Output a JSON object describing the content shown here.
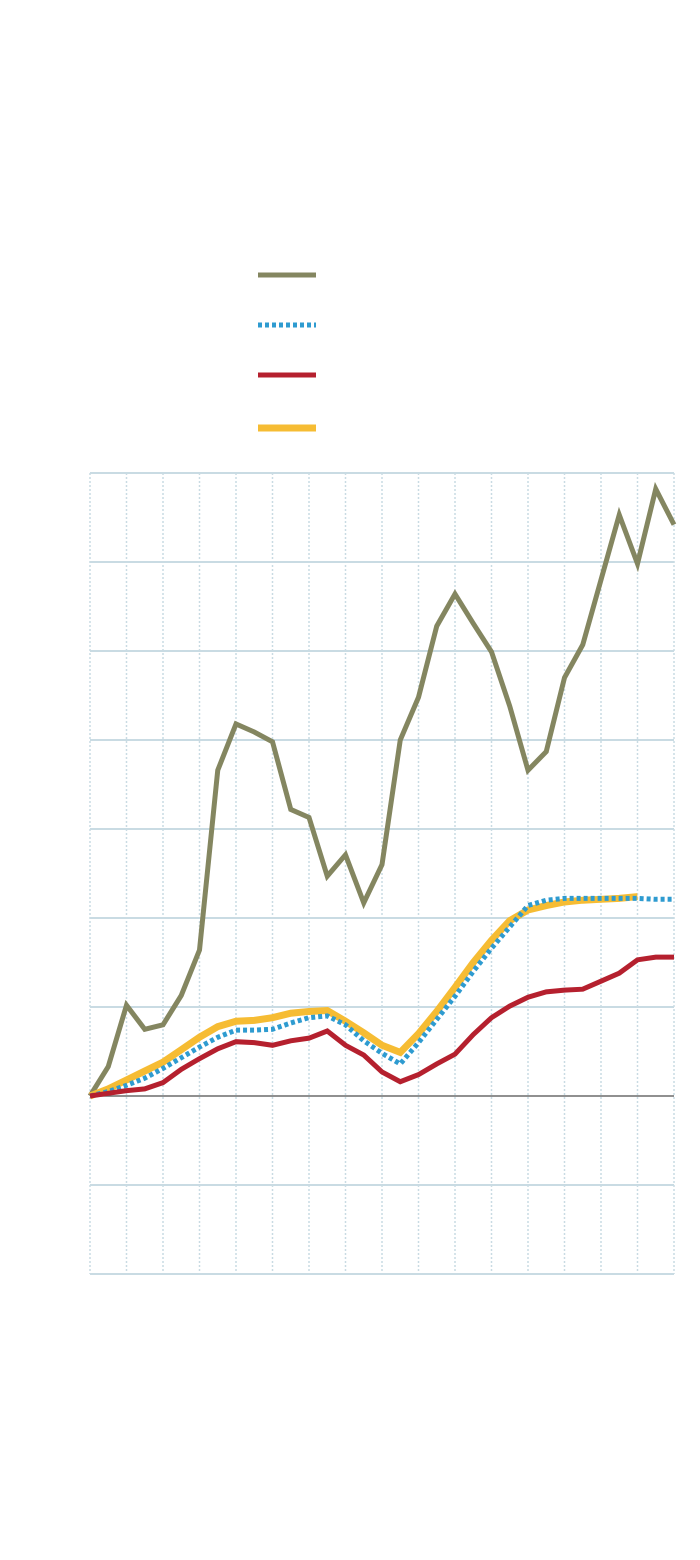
{
  "chart_data": {
    "type": "line",
    "x": [
      0,
      1,
      2,
      3,
      4,
      5,
      6,
      7,
      8,
      9,
      10,
      11,
      12,
      13,
      14,
      15,
      16,
      17,
      18,
      19,
      20,
      21,
      22,
      23,
      24,
      25,
      26,
      27,
      28,
      29,
      30,
      31,
      32
    ],
    "xlim": [
      0,
      32
    ],
    "xticks": [
      0,
      2,
      4,
      6,
      8,
      10,
      12,
      14,
      16,
      18,
      20,
      22,
      24,
      26,
      28,
      30,
      32
    ],
    "ylim": [
      -2,
      7
    ],
    "yticks": [
      -2,
      -1,
      0,
      1,
      2,
      3,
      4,
      5,
      6,
      7
    ],
    "grid": true,
    "series": [
      {
        "color": "#848660",
        "linestyle": "solid",
        "values": [
          0,
          0.33,
          1.02,
          0.75,
          0.8,
          1.13,
          1.64,
          3.66,
          4.18,
          4.09,
          3.98,
          3.22,
          3.13,
          2.47,
          2.71,
          2.17,
          2.6,
          4.0,
          4.48,
          5.28,
          5.64,
          5.31,
          4.99,
          4.38,
          3.66,
          3.87,
          4.7,
          5.07,
          5.8,
          6.53,
          5.98,
          6.82,
          6.42
        ]
      },
      {
        "color": "#2e9bd0",
        "linestyle": "dotted",
        "values": [
          0,
          0.05,
          0.12,
          0.2,
          0.31,
          0.43,
          0.55,
          0.66,
          0.74,
          0.74,
          0.75,
          0.82,
          0.88,
          0.9,
          0.8,
          0.62,
          0.48,
          0.36,
          0.6,
          0.86,
          1.12,
          1.4,
          1.66,
          1.9,
          2.14,
          2.2,
          2.22,
          2.22,
          2.22,
          2.22,
          2.22,
          2.21,
          2.21
        ]
      },
      {
        "color": "#b5202e",
        "linestyle": "solid",
        "values": [
          0,
          0.03,
          0.06,
          0.08,
          0.15,
          0.3,
          0.42,
          0.53,
          0.61,
          0.6,
          0.57,
          0.62,
          0.65,
          0.73,
          0.57,
          0.46,
          0.27,
          0.16,
          0.24,
          0.36,
          0.47,
          0.69,
          0.88,
          1.01,
          1.11,
          1.17,
          1.19,
          1.2,
          1.29,
          1.38,
          1.53,
          1.56,
          1.56
        ]
      },
      {
        "color": "#f6bc33",
        "linestyle": "solid",
        "values": [
          0,
          0.08,
          0.18,
          0.28,
          0.38,
          0.52,
          0.66,
          0.78,
          0.84,
          0.85,
          0.88,
          0.93,
          0.95,
          0.96,
          0.84,
          0.71,
          0.57,
          0.49,
          0.7,
          0.95,
          1.22,
          1.5,
          1.75,
          1.97,
          2.09,
          2.14,
          2.18,
          2.2,
          2.21,
          2.22,
          2.24,
          null,
          null
        ]
      }
    ]
  }
}
